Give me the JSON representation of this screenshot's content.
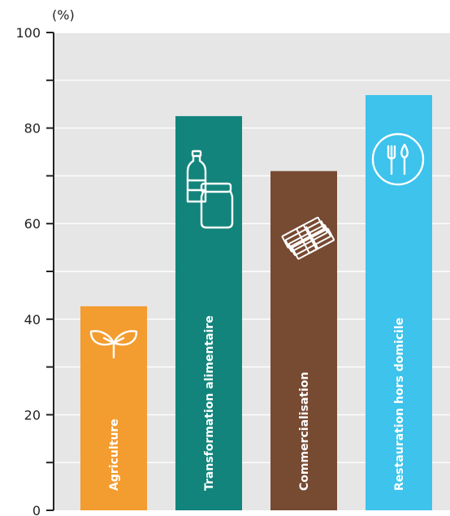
{
  "chart_data": {
    "type": "bar",
    "unit_label": "(%)",
    "ylim": [
      0,
      100
    ],
    "y_ticks_labeled": [
      0,
      20,
      40,
      60,
      80,
      100
    ],
    "y_ticks_minor": [
      10,
      30,
      50,
      70,
      90
    ],
    "grid": true,
    "categories": [
      "Agriculture",
      "Transformation alimentaire",
      "Commercialisation",
      "Restauration hors domicile"
    ],
    "values": [
      42.7,
      82.5,
      71.0,
      86.9
    ],
    "colors": [
      "#F39C2F",
      "#12847C",
      "#774A32",
      "#3DC3EC"
    ],
    "icons": [
      "plant-sprout-icon",
      "bottle-and-jar-icon",
      "money-stack-icon",
      "fork-and-knife-icon"
    ],
    "background_color": "#E6E6E6",
    "grid_color": "#FFFFFF"
  }
}
